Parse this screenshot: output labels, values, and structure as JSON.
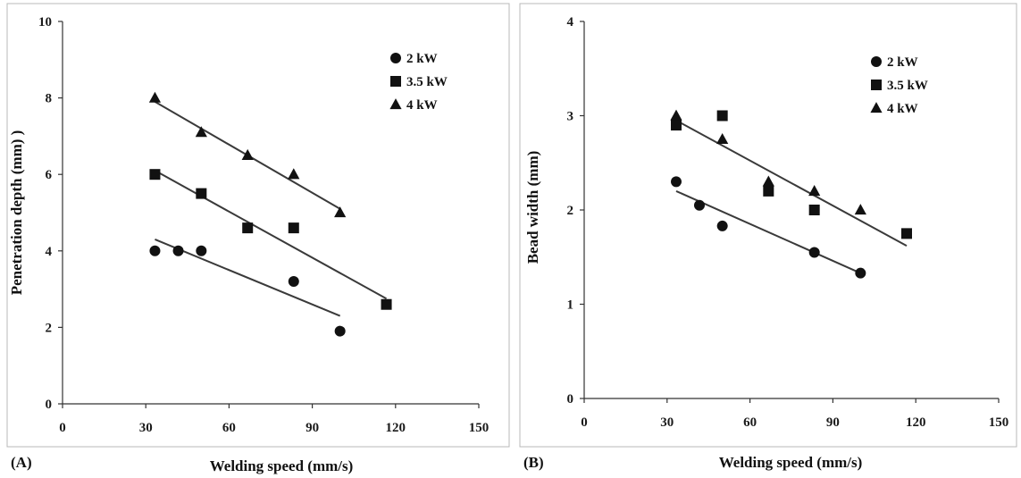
{
  "chart_data": [
    {
      "type": "scatter",
      "panel_label": "(A)",
      "xlabel": "Welding speed (mm/s)",
      "ylabel": "Penetration depth (mm) )",
      "xlim": [
        0,
        150
      ],
      "ylim": [
        0,
        10
      ],
      "xticks": [
        0,
        30,
        60,
        90,
        120,
        150
      ],
      "yticks": [
        0,
        2,
        4,
        6,
        8,
        10
      ],
      "grid": false,
      "legend_position": "top-right",
      "series": [
        {
          "name": "2 kW",
          "marker": "circle",
          "points": [
            [
              33.3,
              4.0
            ],
            [
              41.7,
              4.0
            ],
            [
              50,
              4.0
            ],
            [
              83.3,
              3.2
            ],
            [
              100,
              1.9
            ]
          ],
          "fit": [
            [
              33.3,
              4.3
            ],
            [
              100,
              2.3
            ]
          ]
        },
        {
          "name": "3.5 kW",
          "marker": "square",
          "points": [
            [
              33.3,
              6.0
            ],
            [
              50,
              5.5
            ],
            [
              66.7,
              4.6
            ],
            [
              83.3,
              4.6
            ],
            [
              116.7,
              2.6
            ]
          ],
          "fit": [
            [
              33.3,
              6.1
            ],
            [
              116.7,
              2.75
            ]
          ]
        },
        {
          "name": "4 kW",
          "marker": "triangle",
          "points": [
            [
              33.3,
              8.0
            ],
            [
              50,
              7.1
            ],
            [
              66.7,
              6.5
            ],
            [
              83.3,
              6.0
            ],
            [
              100,
              5.0
            ]
          ],
          "fit": [
            [
              33.3,
              7.9
            ],
            [
              100,
              5.1
            ]
          ]
        }
      ]
    },
    {
      "type": "scatter",
      "panel_label": "(B)",
      "xlabel": "Welding speed (mm/s)",
      "ylabel": "Bead width (mm)",
      "xlim": [
        0,
        150
      ],
      "ylim": [
        0,
        4
      ],
      "xticks": [
        0,
        30,
        60,
        90,
        120,
        150
      ],
      "yticks": [
        0,
        1,
        2,
        3,
        4
      ],
      "grid": false,
      "legend_position": "top-right",
      "series": [
        {
          "name": "2 kW",
          "marker": "circle",
          "points": [
            [
              33.3,
              2.3
            ],
            [
              41.7,
              2.05
            ],
            [
              50,
              1.83
            ],
            [
              83.3,
              1.55
            ],
            [
              100,
              1.33
            ]
          ],
          "fit": [
            [
              33.3,
              2.2
            ],
            [
              100,
              1.33
            ]
          ]
        },
        {
          "name": "3.5 kW",
          "marker": "square",
          "points": [
            [
              33.3,
              2.9
            ],
            [
              50,
              3.0
            ],
            [
              66.7,
              2.2
            ],
            [
              83.3,
              2.0
            ],
            [
              116.7,
              1.75
            ]
          ],
          "fit": null
        },
        {
          "name": "4 kW",
          "marker": "triangle",
          "points": [
            [
              33.3,
              3.0
            ],
            [
              50,
              2.75
            ],
            [
              66.7,
              2.3
            ],
            [
              83.3,
              2.2
            ],
            [
              100,
              2.0
            ]
          ],
          "fit": [
            [
              33.3,
              2.95
            ],
            [
              116.7,
              1.62
            ]
          ]
        }
      ]
    }
  ]
}
